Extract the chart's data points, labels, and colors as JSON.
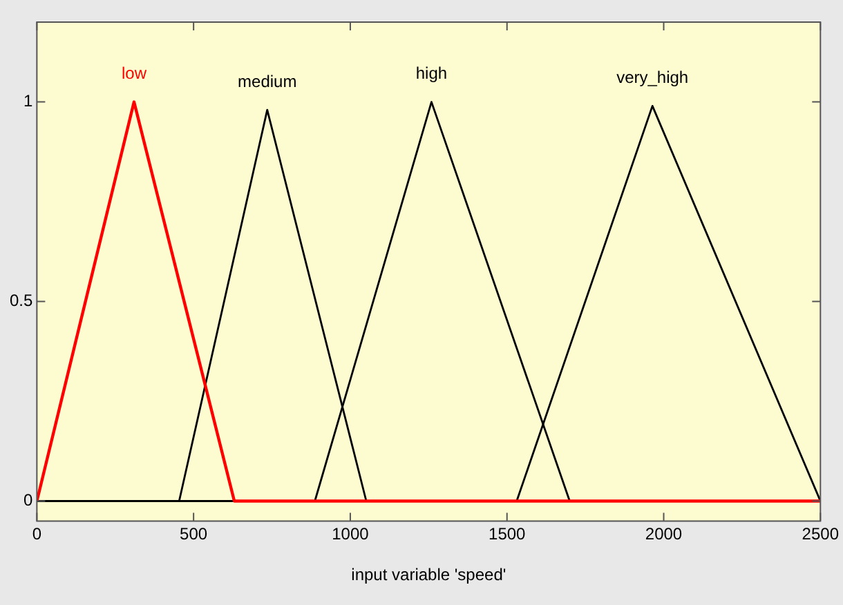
{
  "chart_data": {
    "type": "line",
    "xlabel": "input variable 'speed'",
    "series": [
      {
        "name": "low",
        "color": "#ff0000",
        "x": [
          0,
          310,
          630,
          2500
        ],
        "values": [
          0,
          1,
          0,
          0
        ]
      },
      {
        "name": "medium",
        "color": "#000000",
        "x": [
          0,
          454,
          735,
          1051,
          2500
        ],
        "values": [
          0,
          0,
          0.98,
          0,
          0
        ]
      },
      {
        "name": "high",
        "color": "#000000",
        "x": [
          0,
          887,
          1259,
          1700,
          2500
        ],
        "values": [
          0,
          0,
          1,
          0,
          0
        ]
      },
      {
        "name": "very_high",
        "color": "#000000",
        "x": [
          0,
          1531,
          1964,
          2500
        ],
        "values": [
          0,
          0,
          0.99,
          0
        ]
      }
    ],
    "xlim": [
      0,
      2500
    ],
    "xticks": [
      0,
      500,
      1000,
      1500,
      2000,
      2500
    ],
    "ylim": [
      -0.05,
      1.2
    ],
    "yticks": [
      0,
      0.5,
      1
    ],
    "grid": false,
    "legend": false,
    "marker": "none",
    "line_style": "solid"
  }
}
